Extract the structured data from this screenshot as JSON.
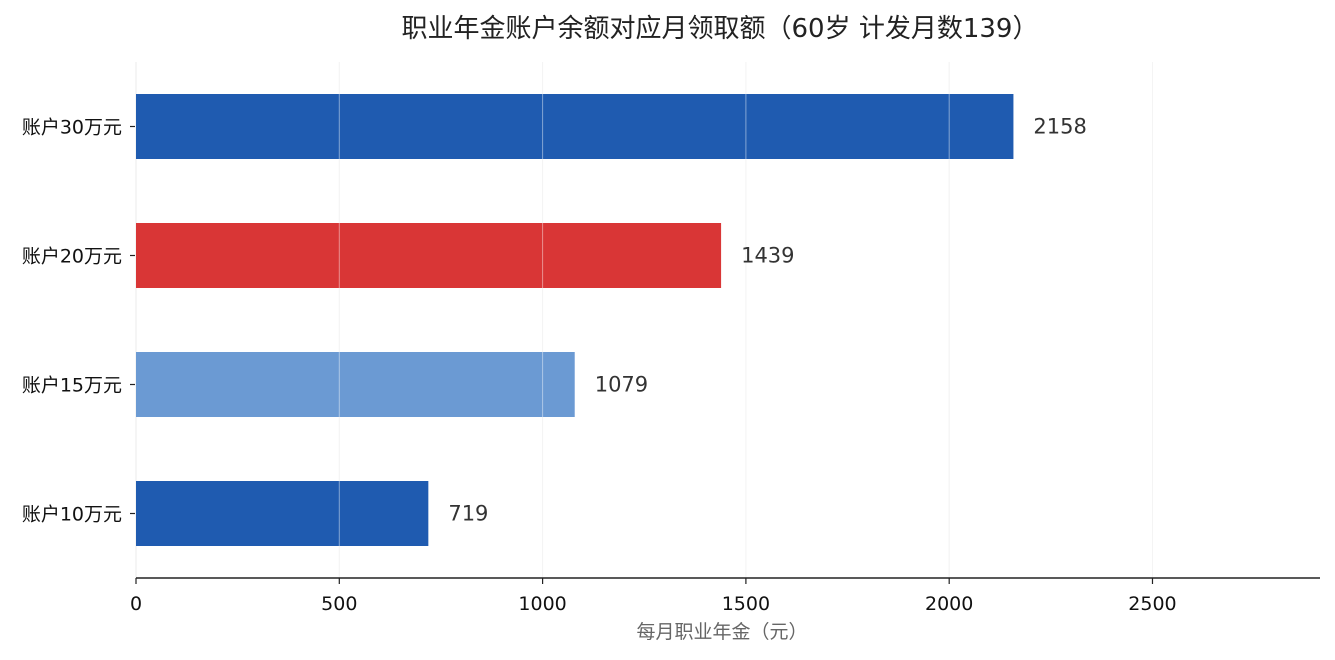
{
  "chart_data": {
    "type": "bar",
    "orientation": "horizontal",
    "title": "职业年金账户余额对应月领取额（60岁 计发月数139）",
    "xlabel": "每月职业年金（元）",
    "ylabel": "",
    "categories": [
      "账户30万元",
      "账户20万元",
      "账户15万元",
      "账户10万元"
    ],
    "values": [
      2158,
      1439,
      1079,
      719
    ],
    "value_labels": [
      "2158",
      "1439",
      "1079",
      "719"
    ],
    "bar_colors": [
      "#1f5bb0",
      "#d93636",
      "#6b9ad3",
      "#1f5bb0"
    ],
    "xlim": [
      0,
      2912
    ],
    "xticks": [
      0,
      500,
      1000,
      1500,
      2000,
      2500
    ],
    "xtick_labels": [
      "0",
      "500",
      "1000",
      "1500",
      "2000",
      "2500"
    ],
    "grid": "vertical",
    "legend": "none"
  }
}
